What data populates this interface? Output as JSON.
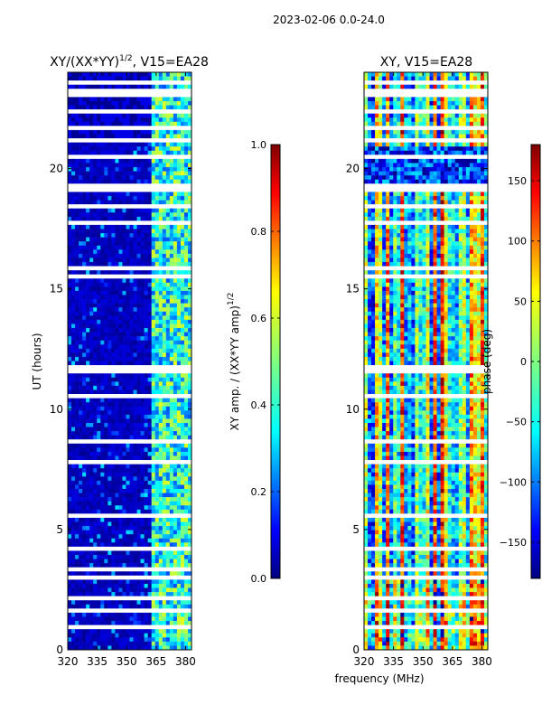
{
  "figure": {
    "suptitle": "2023-02-06 0.0-24.0",
    "xlabel": "frequency (MHz)"
  },
  "chart_data": [
    {
      "type": "heatmap",
      "title_main": "XY/(XX*YY)",
      "title_exp": "1/2",
      "title_rest": ", V15=EA28",
      "ylabel": "UT (hours)",
      "x_ticks": [
        "320",
        "335",
        "350",
        "365",
        "380"
      ],
      "x_tick_values": [
        320,
        335,
        350,
        365,
        380
      ],
      "xlim": [
        320,
        383
      ],
      "y_ticks": [
        "0",
        "5",
        "10",
        "15",
        "20"
      ],
      "y_tick_values": [
        0,
        5,
        10,
        15,
        20
      ],
      "ylim": [
        0,
        24
      ],
      "colorbar": {
        "label": "XY amp. / (XX*YY amp)",
        "label_exp": "1/2",
        "ticks": [
          "0.0",
          "0.2",
          "0.4",
          "0.6",
          "0.8",
          "1.0"
        ],
        "tick_values": [
          0.0,
          0.2,
          0.4,
          0.6,
          0.8,
          1.0
        ],
        "range": [
          0.0,
          1.0
        ],
        "colormap": "jet"
      },
      "white_gap_hours": [
        0.9,
        1.6,
        2.1,
        3.0,
        3.3,
        4.2,
        5.5,
        7.8,
        8.6,
        10.6,
        11.5,
        11.7,
        15.5,
        15.8,
        17.8,
        18.4,
        19.2,
        20.5,
        21.1,
        21.7,
        22.3,
        23.0,
        23.3,
        23.6
      ]
    },
    {
      "type": "heatmap",
      "title_main": "XY, V15=EA28",
      "title_exp": "",
      "title_rest": "",
      "ylabel": "",
      "x_ticks": [
        "320",
        "335",
        "350",
        "365",
        "380"
      ],
      "x_tick_values": [
        320,
        335,
        350,
        365,
        380
      ],
      "xlim": [
        320,
        383
      ],
      "y_ticks": [
        "0",
        "5",
        "10",
        "15",
        "20"
      ],
      "y_tick_values": [
        0,
        5,
        10,
        15,
        20
      ],
      "ylim": [
        0,
        24
      ],
      "colorbar": {
        "label": "phase (deg)",
        "label_exp": "",
        "ticks": [
          "−150",
          "−100",
          "−50",
          "0",
          "50",
          "100",
          "150"
        ],
        "tick_values": [
          -150,
          -100,
          -50,
          0,
          50,
          100,
          150
        ],
        "range": [
          -180,
          180
        ],
        "colormap": "jet"
      },
      "white_gap_hours": [
        0.9,
        1.6,
        2.1,
        3.0,
        3.3,
        4.2,
        5.5,
        7.8,
        8.6,
        10.6,
        11.5,
        11.7,
        15.5,
        15.8,
        17.8,
        18.4,
        19.2,
        20.5,
        21.1,
        21.7,
        22.3,
        23.0,
        23.3,
        23.6
      ]
    }
  ],
  "colors": {
    "jet": [
      "#00007f",
      "#0000ff",
      "#007fff",
      "#00ffff",
      "#7fff7f",
      "#ffff00",
      "#ff7f00",
      "#ff0000",
      "#7f0000"
    ]
  }
}
